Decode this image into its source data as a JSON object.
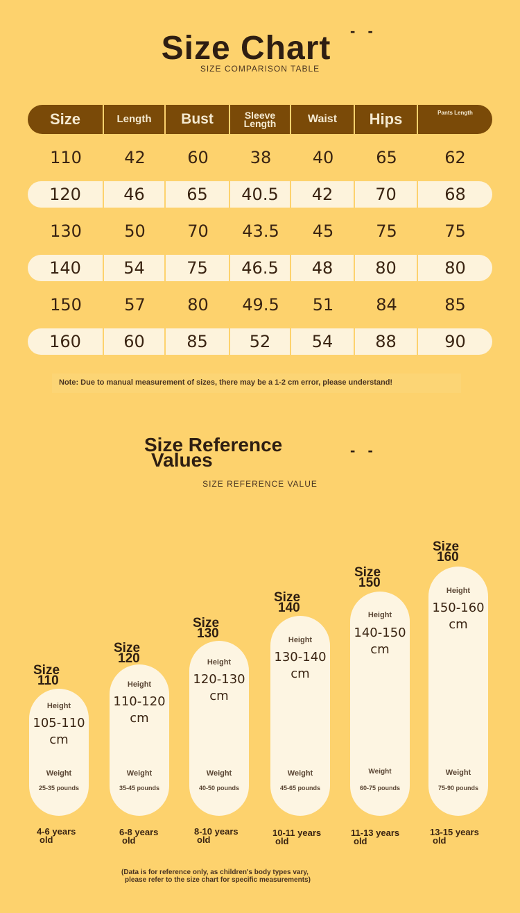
{
  "header": {
    "title": "Size Chart",
    "title_dashes": "- -",
    "subtitle": "SIZE COMPARISON TABLE"
  },
  "table": {
    "columns": [
      "Size",
      "Length",
      "Bust",
      "Sleeve Length",
      "Waist",
      "Hips",
      "Pants Length"
    ],
    "rows": [
      [
        "110",
        "42",
        "60",
        "38",
        "40",
        "65",
        "62"
      ],
      [
        "120",
        "46",
        "65",
        "40.5",
        "42",
        "70",
        "68"
      ],
      [
        "130",
        "50",
        "70",
        "43.5",
        "45",
        "75",
        "75"
      ],
      [
        "140",
        "54",
        "75",
        "46.5",
        "48",
        "80",
        "80"
      ],
      [
        "150",
        "57",
        "80",
        "49.5",
        "51",
        "84",
        "85"
      ],
      [
        "160",
        "60",
        "85",
        "52",
        "54",
        "88",
        "90"
      ]
    ]
  },
  "note": "Note: Due to manual measurement of sizes, there may be a 1-2 cm error, please understand!",
  "reference": {
    "title_line1": "Size Reference",
    "title_line2": "Values",
    "title_dashes": "- -",
    "subtitle": "SIZE REFERENCE VALUE",
    "items": [
      {
        "size_word": "Size",
        "size": "110",
        "height_label": "Height",
        "height_range": "105-110",
        "height_unit": "cm",
        "weight_label": "Weight",
        "weight": "25-35 pounds",
        "age_line1": "4-6 years",
        "age_line2": "old"
      },
      {
        "size_word": "Size",
        "size": "120",
        "height_label": "Height",
        "height_range": "110-120",
        "height_unit": "cm",
        "weight_label": "Weight",
        "weight": "35-45 pounds",
        "age_line1": "6-8 years",
        "age_line2": "old"
      },
      {
        "size_word": "Size",
        "size": "130",
        "height_label": "Height",
        "height_range": "120-130",
        "height_unit": "cm",
        "weight_label": "Weight",
        "weight": "40-50 pounds",
        "age_line1": "8-10 years",
        "age_line2": "old"
      },
      {
        "size_word": "Size",
        "size": "140",
        "height_label": "Height",
        "height_range": "130-140",
        "height_unit": "cm",
        "weight_label": "Weight",
        "weight": "45-65 pounds",
        "age_line1": "10-11 years",
        "age_line2": "old"
      },
      {
        "size_word": "Size",
        "size": "150",
        "height_label": "Height",
        "height_range": "140-150",
        "height_unit": "cm",
        "weight_label": "Weight",
        "weight": "60-75 pounds",
        "age_line1": "11-13 years",
        "age_line2": "old"
      },
      {
        "size_word": "Size",
        "size": "160",
        "height_label": "Height",
        "height_range": "150-160",
        "height_unit": "cm",
        "weight_label": "Weight",
        "weight": "75-90 pounds",
        "age_line1": "13-15 years",
        "age_line2": "old"
      }
    ]
  },
  "footnote_line1": "(Data is for reference only, as children's body types vary,",
  "footnote_line2": "please refer to the size chart for specific measurements)",
  "colors": {
    "background": "#fdd26d",
    "header_bar": "#7a4a08",
    "row_highlight": "#fdf3dc",
    "pill": "#fdf5e2",
    "text_dark": "#2e1e12"
  }
}
